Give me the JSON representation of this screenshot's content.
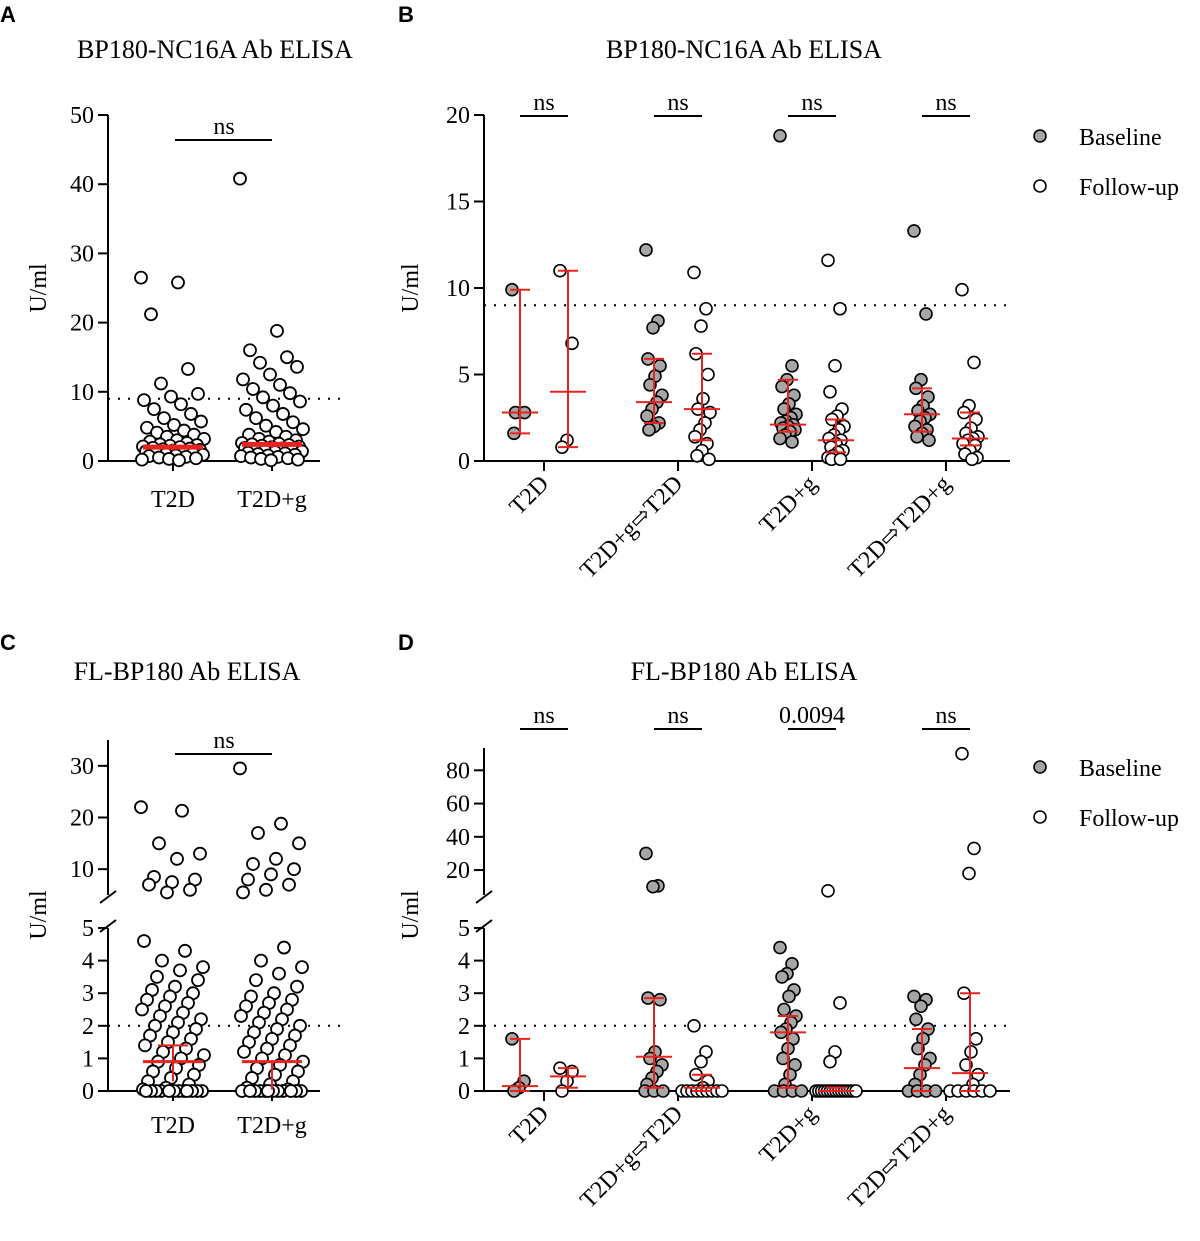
{
  "colors": {
    "red": "#e8231f",
    "gray": "#a6a6a6",
    "black": "#000000"
  },
  "chart_data": [
    {
      "panel": "A",
      "type": "scatter",
      "title": "BP180-NC16A Ab ELISA",
      "ylabel": "U/ml",
      "categories": [
        "T2D",
        "T2D+g"
      ],
      "yticks": [
        "0",
        "10",
        "20",
        "30",
        "40",
        "50"
      ],
      "ylim": [
        0,
        50
      ],
      "cutoff": 9,
      "significance": [
        {
          "label": "ns",
          "between": [
            "T2D",
            "T2D+g"
          ]
        }
      ],
      "series": [
        {
          "name": "T2D",
          "median": 2.0,
          "iqr": [
            1.5,
            2.5
          ],
          "values": [
            26.5,
            25.8,
            21.2,
            13.3,
            11.2,
            9.7,
            9.3,
            8.8,
            8.2,
            7.5,
            6.8,
            6.2,
            5.7,
            5.2,
            4.8,
            4.4,
            4.1,
            3.8,
            3.5,
            3.2,
            3.0,
            2.8,
            2.6,
            2.4,
            2.3,
            2.2,
            2.1,
            2.0,
            1.9,
            1.8,
            1.7,
            1.6,
            1.5,
            1.4,
            1.3,
            1.2,
            1.1,
            1.0,
            0.9,
            0.8,
            0.7,
            0.6,
            0.5,
            0.4,
            0.3,
            0.2,
            0.1
          ]
        },
        {
          "name": "T2D+g",
          "median": 2.4,
          "iqr": [
            1.9,
            3.0
          ],
          "values": [
            40.8,
            18.8,
            16.0,
            15.0,
            14.2,
            13.6,
            12.5,
            11.8,
            11.0,
            10.4,
            9.8,
            9.2,
            8.6,
            8.0,
            7.4,
            6.8,
            6.2,
            5.6,
            5.1,
            4.6,
            4.2,
            3.8,
            3.5,
            3.2,
            3.0,
            2.8,
            2.6,
            2.5,
            2.4,
            2.3,
            2.2,
            2.1,
            2.0,
            1.9,
            1.8,
            1.7,
            1.6,
            1.5,
            1.4,
            1.3,
            1.2,
            1.1,
            1.0,
            0.9,
            0.8,
            0.7,
            0.6,
            0.5,
            0.4,
            0.3,
            0.2,
            0.1
          ]
        }
      ]
    },
    {
      "panel": "B",
      "type": "scatter",
      "title": "BP180-NC16A Ab ELISA",
      "ylabel": "U/ml",
      "categories": [
        "T2D",
        "T2D+g⇨T2D",
        "T2D+g",
        "T2D⇨T2D+g"
      ],
      "yticks": [
        "0",
        "5",
        "10",
        "15",
        "20"
      ],
      "ylim": [
        0,
        20
      ],
      "cutoff": 9,
      "legend": [
        "Baseline",
        "Follow-up"
      ],
      "significance": [
        {
          "label": "ns",
          "group": "T2D"
        },
        {
          "label": "ns",
          "group": "T2D+g⇨T2D"
        },
        {
          "label": "ns",
          "group": "T2D+g"
        },
        {
          "label": "ns",
          "group": "T2D⇨T2D+g"
        }
      ],
      "series": [
        {
          "group": "T2D",
          "name": "Baseline",
          "median": 2.8,
          "iqr": [
            1.6,
            9.9
          ],
          "values": [
            9.9,
            2.8,
            2.8,
            1.6
          ]
        },
        {
          "group": "T2D",
          "name": "Follow-up",
          "median": 4.0,
          "iqr": [
            0.8,
            11.0
          ],
          "values": [
            11.0,
            6.8,
            1.2,
            0.8
          ]
        },
        {
          "group": "T2D+g⇨T2D",
          "name": "Baseline",
          "median": 3.4,
          "iqr": [
            2.2,
            5.9
          ],
          "values": [
            12.2,
            8.1,
            7.7,
            5.9,
            5.5,
            4.9,
            4.4,
            3.8,
            3.4,
            3.0,
            2.6,
            2.2,
            2.0,
            1.8
          ]
        },
        {
          "group": "T2D+g⇨T2D",
          "name": "Follow-up",
          "median": 3.0,
          "iqr": [
            1.2,
            6.2
          ],
          "values": [
            10.9,
            8.8,
            7.8,
            6.2,
            5.0,
            3.6,
            3.0,
            2.8,
            2.2,
            1.8,
            1.4,
            1.0,
            0.6,
            0.3,
            0.1
          ]
        },
        {
          "group": "T2D+g",
          "name": "Baseline",
          "median": 2.1,
          "iqr": [
            1.7,
            4.7
          ],
          "values": [
            18.8,
            5.5,
            4.7,
            4.3,
            3.8,
            3.3,
            3.0,
            2.7,
            2.5,
            2.3,
            2.2,
            2.1,
            2.0,
            1.9,
            1.8,
            1.7,
            1.5,
            1.3,
            1.1
          ]
        },
        {
          "group": "T2D+g",
          "name": "Follow-up",
          "median": 1.2,
          "iqr": [
            0.5,
            2.4
          ],
          "values": [
            11.6,
            8.8,
            5.5,
            4.0,
            3.0,
            2.6,
            2.4,
            2.0,
            1.8,
            1.5,
            1.3,
            1.2,
            1.0,
            0.8,
            0.6,
            0.5,
            0.3,
            0.2,
            0.1,
            0.1
          ]
        },
        {
          "group": "T2D⇨T2D+g",
          "name": "Baseline",
          "median": 2.7,
          "iqr": [
            1.7,
            4.2
          ],
          "values": [
            13.3,
            8.5,
            4.7,
            4.2,
            3.7,
            3.2,
            2.9,
            2.7,
            2.5,
            2.3,
            2.0,
            1.8,
            1.6,
            1.4,
            1.2
          ]
        },
        {
          "group": "T2D⇨T2D+g",
          "name": "Follow-up",
          "median": 1.3,
          "iqr": [
            0.9,
            2.8
          ],
          "values": [
            9.9,
            5.7,
            3.2,
            2.8,
            2.4,
            1.9,
            1.6,
            1.4,
            1.3,
            1.2,
            1.0,
            0.9,
            0.6,
            0.4,
            0.2,
            0.1
          ]
        }
      ]
    },
    {
      "panel": "C",
      "type": "scatter",
      "title": "FL-BP180 Ab ELISA",
      "ylabel": "U/ml",
      "categories": [
        "T2D",
        "T2D+g"
      ],
      "yticks_lower": [
        "0",
        "1",
        "2",
        "3",
        "4",
        "5"
      ],
      "yticks_upper": [
        "10",
        "20",
        "30"
      ],
      "ylim_lower": [
        0,
        5
      ],
      "ylim_upper": [
        5,
        35
      ],
      "cutoff": 2,
      "significance": [
        {
          "label": "ns",
          "between": [
            "T2D",
            "T2D+g"
          ]
        }
      ],
      "series": [
        {
          "name": "T2D",
          "median": 0.9,
          "iqr": [
            0.3,
            1.4
          ],
          "values": [
            22.0,
            21.3,
            15.0,
            13.0,
            12.0,
            8.5,
            8.0,
            7.5,
            7.0,
            6.0,
            5.5,
            4.6,
            4.3,
            4.0,
            3.8,
            3.7,
            3.5,
            3.4,
            3.2,
            3.1,
            3.0,
            2.9,
            2.8,
            2.7,
            2.6,
            2.5,
            2.4,
            2.3,
            2.2,
            2.1,
            2.0,
            1.9,
            1.8,
            1.7,
            1.6,
            1.5,
            1.4,
            1.3,
            1.2,
            1.1,
            1.0,
            0.9,
            0.8,
            0.7,
            0.6,
            0.5,
            0.4,
            0.3,
            0.2,
            0.1,
            0.05,
            0.0,
            0.0,
            0.0,
            0.0,
            0.0,
            0.0,
            0.0,
            0.0,
            0.0,
            0.0,
            0.0,
            0.0
          ]
        },
        {
          "name": "T2D+g",
          "median": 0.9,
          "iqr": [
            0.05,
            0.9
          ],
          "values": [
            29.5,
            18.8,
            17.0,
            15.0,
            12.0,
            11.0,
            10.0,
            9.0,
            8.0,
            7.0,
            6.0,
            5.5,
            4.4,
            4.0,
            3.8,
            3.6,
            3.4,
            3.2,
            3.0,
            2.9,
            2.8,
            2.7,
            2.6,
            2.5,
            2.4,
            2.3,
            2.2,
            2.1,
            2.0,
            1.9,
            1.8,
            1.7,
            1.6,
            1.5,
            1.4,
            1.3,
            1.2,
            1.1,
            1.0,
            0.9,
            0.8,
            0.7,
            0.6,
            0.5,
            0.4,
            0.3,
            0.2,
            0.1,
            0.05,
            0.0,
            0.0,
            0.0,
            0.0,
            0.0,
            0.0,
            0.0,
            0.0,
            0.0,
            0.0,
            0.0,
            0.0
          ]
        }
      ]
    },
    {
      "panel": "D",
      "type": "scatter",
      "title": "FL-BP180 Ab ELISA",
      "ylabel": "U/ml",
      "categories": [
        "T2D",
        "T2D+g⇨T2D",
        "T2D+g",
        "T2D⇨T2D+g"
      ],
      "yticks_lower": [
        "0",
        "1",
        "2",
        "3",
        "4",
        "5"
      ],
      "yticks_upper": [
        "20",
        "40",
        "60",
        "80"
      ],
      "ylim_lower": [
        0,
        5
      ],
      "ylim_upper": [
        5,
        90
      ],
      "cutoff": 2,
      "legend": [
        "Baseline",
        "Follow-up"
      ],
      "significance": [
        {
          "label": "ns",
          "group": "T2D"
        },
        {
          "label": "ns",
          "group": "T2D+g⇨T2D"
        },
        {
          "label": "0.0094",
          "group": "T2D+g"
        },
        {
          "label": "ns",
          "group": "T2D⇨T2D+g"
        }
      ],
      "series": [
        {
          "group": "T2D",
          "name": "Baseline",
          "median": 0.15,
          "iqr": [
            0.0,
            1.6
          ],
          "values": [
            1.6,
            0.3,
            0.1,
            0.0
          ]
        },
        {
          "group": "T2D",
          "name": "Follow-up",
          "median": 0.45,
          "iqr": [
            0.1,
            0.7
          ],
          "values": [
            0.7,
            0.6,
            0.3,
            0.0
          ]
        },
        {
          "group": "T2D+g⇨T2D",
          "name": "Baseline",
          "median": 1.05,
          "iqr": [
            0.1,
            2.85
          ],
          "values": [
            30.0,
            10.5,
            10.0,
            2.85,
            2.8,
            1.2,
            1.0,
            0.8,
            0.6,
            0.4,
            0.2,
            0.0,
            0.0,
            0.0
          ]
        },
        {
          "group": "T2D+g⇨T2D",
          "name": "Follow-up",
          "median": 0.1,
          "iqr": [
            0.0,
            0.5
          ],
          "values": [
            2.0,
            1.2,
            0.9,
            0.5,
            0.3,
            0.1,
            0.0,
            0.0,
            0.0,
            0.0,
            0.0,
            0.0,
            0.0,
            0.0,
            0.0
          ]
        },
        {
          "group": "T2D+g",
          "name": "Baseline",
          "median": 1.8,
          "iqr": [
            0.1,
            2.3
          ],
          "values": [
            4.4,
            3.9,
            3.6,
            3.5,
            3.1,
            2.9,
            2.5,
            2.3,
            2.1,
            1.9,
            1.8,
            1.6,
            1.3,
            1.0,
            0.8,
            0.5,
            0.2,
            0.0,
            0.0,
            0.0,
            0.0
          ]
        },
        {
          "group": "T2D+g",
          "name": "Follow-up",
          "median": 0.0,
          "iqr": [
            0.0,
            0.1
          ],
          "values": [
            7.5,
            2.7,
            1.2,
            0.9,
            0.0,
            0.0,
            0.0,
            0.0,
            0.0,
            0.0,
            0.0,
            0.0,
            0.0,
            0.0,
            0.0,
            0.0,
            0.0,
            0.0,
            0.0
          ]
        },
        {
          "group": "T2D⇨T2D+g",
          "name": "Baseline",
          "median": 0.7,
          "iqr": [
            0.0,
            1.9
          ],
          "values": [
            2.9,
            2.8,
            2.6,
            2.2,
            1.9,
            1.6,
            1.3,
            1.0,
            0.8,
            0.5,
            0.2,
            0.0,
            0.0,
            0.0,
            0.0
          ]
        },
        {
          "group": "T2D⇨T2D+g",
          "name": "Follow-up",
          "median": 0.55,
          "iqr": [
            0.0,
            3.0
          ],
          "values": [
            90.0,
            33.0,
            18.0,
            3.0,
            1.6,
            1.2,
            0.8,
            0.5,
            0.2,
            0.0,
            0.0,
            0.0,
            0.0,
            0.0,
            0.0
          ]
        }
      ]
    }
  ]
}
